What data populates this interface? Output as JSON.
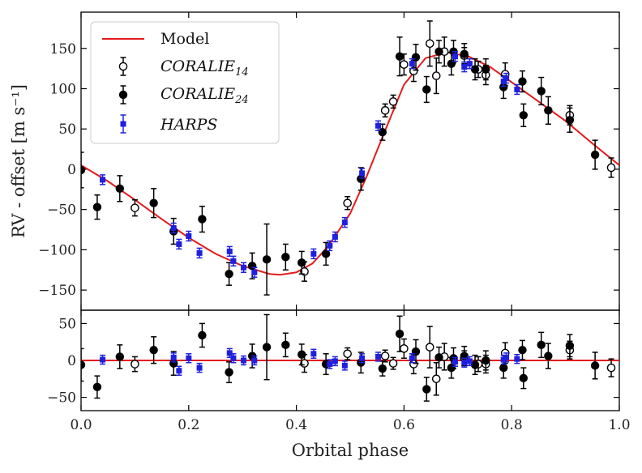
{
  "chart_data": {
    "type": "scatter",
    "xlabel": "Orbital phase",
    "ylabel": "RV - offset [m s⁻¹]",
    "xlim": [
      0.0,
      1.0
    ],
    "x_ticks": [
      0.0,
      0.2,
      0.4,
      0.6,
      0.8,
      1.0
    ],
    "x_tick_labels": [
      "0.0",
      "0.2",
      "0.4",
      "0.6",
      "0.8",
      "1.0"
    ],
    "colors": {
      "model": "#e41a1c",
      "coralie": "#000000",
      "harps": "#1f1fe0"
    },
    "legend": {
      "position": "top-left",
      "entries": [
        {
          "label": "Model",
          "kind": "line"
        },
        {
          "label": "CORALIE",
          "sub": "14",
          "kind": "open-circle"
        },
        {
          "label": "CORALIE",
          "sub": "24",
          "kind": "filled-circle"
        },
        {
          "label": "HARPS",
          "kind": "square"
        }
      ]
    },
    "panels": [
      {
        "name": "rv",
        "ylim": [
          -175,
          195
        ],
        "y_ticks": [
          -150,
          -100,
          -50,
          0,
          50,
          100,
          150
        ],
        "y_tick_labels": [
          "−150",
          "−100",
          "−50",
          "0",
          "50",
          "100",
          "150"
        ]
      },
      {
        "name": "residuals",
        "ylim": [
          -68,
          68
        ],
        "y_ticks": [
          -50,
          0,
          50
        ],
        "y_tick_labels": [
          "−50",
          "0",
          "50"
        ]
      }
    ],
    "model": {
      "x": [
        0.0,
        0.05,
        0.1,
        0.15,
        0.2,
        0.25,
        0.3,
        0.35,
        0.37,
        0.4,
        0.43,
        0.46,
        0.5,
        0.53,
        0.56,
        0.6,
        0.64,
        0.68,
        0.72,
        0.76,
        0.8,
        0.85,
        0.9,
        0.95,
        1.0
      ],
      "y": [
        5,
        -15,
        -38,
        -62,
        -85,
        -105,
        -120,
        -130,
        -131,
        -128,
        -117,
        -95,
        -55,
        -10,
        40,
        105,
        138,
        145,
        140,
        127,
        108,
        84,
        60,
        32,
        5
      ]
    },
    "series": [
      {
        "name": "CORALIE14",
        "marker": "open-circle",
        "points": [
          {
            "x": 0.1,
            "y": -48,
            "e": 10,
            "r": -5
          },
          {
            "x": 0.415,
            "y": -127,
            "e": 12,
            "r": -4
          },
          {
            "x": 0.495,
            "y": -42,
            "e": 8,
            "r": 9
          },
          {
            "x": 0.565,
            "y": 73,
            "e": 8,
            "r": 6
          },
          {
            "x": 0.58,
            "y": 84,
            "e": 8,
            "r": -4
          },
          {
            "x": 0.6,
            "y": 130,
            "e": 13,
            "r": 16
          },
          {
            "x": 0.618,
            "y": 122,
            "e": 13,
            "r": -5
          },
          {
            "x": 0.648,
            "y": 156,
            "e": 28,
            "r": 18
          },
          {
            "x": 0.66,
            "y": 116,
            "e": 22,
            "r": -25
          },
          {
            "x": 0.675,
            "y": 146,
            "e": 18,
            "r": 5
          },
          {
            "x": 0.712,
            "y": 141,
            "e": 10,
            "r": 3
          },
          {
            "x": 0.738,
            "y": 124,
            "e": 10,
            "r": -5
          },
          {
            "x": 0.752,
            "y": 117,
            "e": 12,
            "r": -5
          },
          {
            "x": 0.788,
            "y": 118,
            "e": 14,
            "r": 10
          },
          {
            "x": 0.908,
            "y": 67,
            "e": 12,
            "r": 14
          },
          {
            "x": 0.985,
            "y": 2,
            "e": 12,
            "r": -10
          }
        ]
      },
      {
        "name": "CORALIE24",
        "marker": "filled-circle",
        "points": [
          {
            "x": 0.0,
            "y": -1,
            "e": 22,
            "r": -6
          },
          {
            "x": 0.03,
            "y": -47,
            "e": 15,
            "r": -36
          },
          {
            "x": 0.072,
            "y": -24,
            "e": 16,
            "r": 5
          },
          {
            "x": 0.135,
            "y": -42,
            "e": 18,
            "r": 14
          },
          {
            "x": 0.172,
            "y": -77,
            "e": 16,
            "r": -4
          },
          {
            "x": 0.225,
            "y": -62,
            "e": 16,
            "r": 34
          },
          {
            "x": 0.275,
            "y": -130,
            "e": 14,
            "r": -16
          },
          {
            "x": 0.318,
            "y": -120,
            "e": 16,
            "r": 6
          },
          {
            "x": 0.345,
            "y": -112,
            "e": 44,
            "r": 18
          },
          {
            "x": 0.38,
            "y": -109,
            "e": 16,
            "r": 21
          },
          {
            "x": 0.41,
            "y": -116,
            "e": 14,
            "r": 8
          },
          {
            "x": 0.455,
            "y": -105,
            "e": 14,
            "r": -5
          },
          {
            "x": 0.52,
            "y": -12,
            "e": 14,
            "r": -3
          },
          {
            "x": 0.56,
            "y": 46,
            "e": 10,
            "r": -11
          },
          {
            "x": 0.592,
            "y": 140,
            "e": 24,
            "r": 36
          },
          {
            "x": 0.622,
            "y": 139,
            "e": 16,
            "r": 12
          },
          {
            "x": 0.642,
            "y": 99,
            "e": 16,
            "r": -39
          },
          {
            "x": 0.665,
            "y": 146,
            "e": 14,
            "r": 4
          },
          {
            "x": 0.688,
            "y": 131,
            "e": 14,
            "r": -10
          },
          {
            "x": 0.692,
            "y": 146,
            "e": 14,
            "r": 3
          },
          {
            "x": 0.712,
            "y": 143,
            "e": 13,
            "r": 6
          },
          {
            "x": 0.732,
            "y": 124,
            "e": 13,
            "r": -6
          },
          {
            "x": 0.752,
            "y": 124,
            "e": 13,
            "r": 0
          },
          {
            "x": 0.785,
            "y": 102,
            "e": 14,
            "r": -10
          },
          {
            "x": 0.82,
            "y": 109,
            "e": 13,
            "r": 14
          },
          {
            "x": 0.822,
            "y": 67,
            "e": 14,
            "r": -24
          },
          {
            "x": 0.855,
            "y": 97,
            "e": 17,
            "r": 21
          },
          {
            "x": 0.868,
            "y": 73,
            "e": 17,
            "r": 6
          },
          {
            "x": 0.908,
            "y": 61,
            "e": 15,
            "r": 20
          },
          {
            "x": 0.955,
            "y": 18,
            "e": 18,
            "r": -7
          }
        ]
      },
      {
        "name": "HARPS",
        "marker": "square",
        "points": [
          {
            "x": 0.04,
            "y": -13,
            "e": 6,
            "r": 1
          },
          {
            "x": 0.172,
            "y": -73,
            "e": 6,
            "r": 4
          },
          {
            "x": 0.182,
            "y": -93,
            "e": 6,
            "r": -14
          },
          {
            "x": 0.2,
            "y": -83,
            "e": 6,
            "r": 3
          },
          {
            "x": 0.22,
            "y": -104,
            "e": 6,
            "r": -10
          },
          {
            "x": 0.276,
            "y": -102,
            "e": 6,
            "r": 10
          },
          {
            "x": 0.283,
            "y": -114,
            "e": 6,
            "r": 3
          },
          {
            "x": 0.302,
            "y": -122,
            "e": 6,
            "r": 0
          },
          {
            "x": 0.322,
            "y": -128,
            "e": 6,
            "r": 0
          },
          {
            "x": 0.432,
            "y": -105,
            "e": 6,
            "r": 9
          },
          {
            "x": 0.462,
            "y": -95,
            "e": 6,
            "r": -5
          },
          {
            "x": 0.472,
            "y": -84,
            "e": 6,
            "r": -1
          },
          {
            "x": 0.49,
            "y": -66,
            "e": 6,
            "r": -7
          },
          {
            "x": 0.522,
            "y": -5,
            "e": 6,
            "r": 3
          },
          {
            "x": 0.552,
            "y": 54,
            "e": 6,
            "r": 5
          },
          {
            "x": 0.615,
            "y": 131,
            "e": 6,
            "r": 3
          },
          {
            "x": 0.695,
            "y": 140,
            "e": 6,
            "r": -2
          },
          {
            "x": 0.712,
            "y": 127,
            "e": 6,
            "r": -3
          },
          {
            "x": 0.722,
            "y": 131,
            "e": 6,
            "r": -1
          },
          {
            "x": 0.785,
            "y": 109,
            "e": 6,
            "r": 1
          },
          {
            "x": 0.79,
            "y": 113,
            "e": 6,
            "r": 4
          },
          {
            "x": 0.81,
            "y": 99,
            "e": 6,
            "r": 2
          }
        ]
      }
    ]
  }
}
